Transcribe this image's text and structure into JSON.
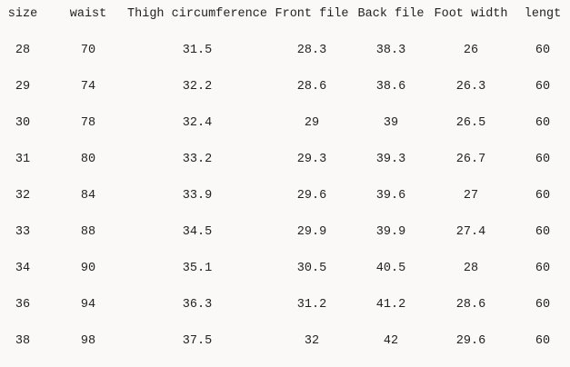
{
  "table": {
    "header": [
      "size",
      "waist",
      "Thigh circumference",
      "Front file",
      "Back file",
      "Foot width",
      "lengt"
    ],
    "rows": [
      [
        "28",
        "70",
        "31.5",
        "28.3",
        "38.3",
        "26",
        "60"
      ],
      [
        "29",
        "74",
        "32.2",
        "28.6",
        "38.6",
        "26.3",
        "60"
      ],
      [
        "30",
        "78",
        "32.4",
        "29",
        "39",
        "26.5",
        "60"
      ],
      [
        "31",
        "80",
        "33.2",
        "29.3",
        "39.3",
        "26.7",
        "60"
      ],
      [
        "32",
        "84",
        "33.9",
        "29.6",
        "39.6",
        "27",
        "60"
      ],
      [
        "33",
        "88",
        "34.5",
        "29.9",
        "39.9",
        "27.4",
        "60"
      ],
      [
        "34",
        "90",
        "35.1",
        "30.5",
        "40.5",
        "28",
        "60"
      ],
      [
        "36",
        "94",
        "36.3",
        "31.2",
        "41.2",
        "28.6",
        "60"
      ],
      [
        "38",
        "98",
        "37.5",
        "32",
        "42",
        "29.6",
        "60"
      ]
    ]
  }
}
